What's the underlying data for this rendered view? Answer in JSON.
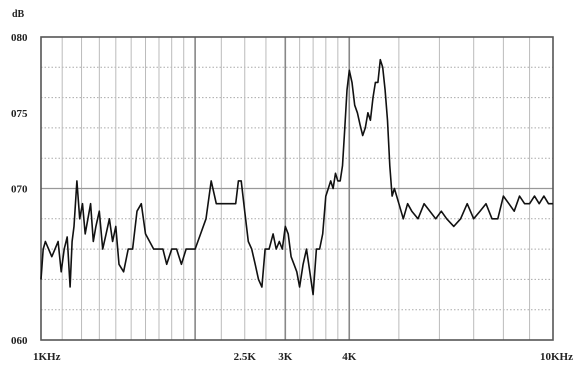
{
  "chart_data": {
    "type": "line",
    "y_unit": "dB",
    "ylim": [
      60,
      80
    ],
    "y_ticks": [
      {
        "value": 80,
        "label": "080"
      },
      {
        "value": 75,
        "label": "075"
      },
      {
        "value": 70,
        "label": "070"
      },
      {
        "value": 60,
        "label": "060"
      }
    ],
    "xlim": [
      1000,
      10000
    ],
    "x_scale": "log",
    "x_ticks": [
      {
        "value": 1000,
        "label": "1KHz"
      },
      {
        "value": 2500,
        "label": "2.5K"
      },
      {
        "value": 3000,
        "label": "3K"
      },
      {
        "value": 4000,
        "label": "4K"
      },
      {
        "value": 10000,
        "label": "10KHz"
      }
    ],
    "grid": true,
    "series": [
      {
        "color": "#111111",
        "x": [
          1000,
          1010,
          1020,
          1035,
          1050,
          1065,
          1080,
          1095,
          1110,
          1125,
          1140,
          1150,
          1160,
          1175,
          1190,
          1205,
          1220,
          1235,
          1250,
          1265,
          1280,
          1300,
          1320,
          1340,
          1360,
          1380,
          1400,
          1420,
          1450,
          1480,
          1510,
          1540,
          1570,
          1600,
          1630,
          1660,
          1700,
          1730,
          1760,
          1800,
          1840,
          1880,
          1920,
          1960,
          2000,
          2050,
          2100,
          2150,
          2200,
          2240,
          2280,
          2320,
          2360,
          2400,
          2430,
          2460,
          2500,
          2540,
          2580,
          2620,
          2660,
          2700,
          2740,
          2790,
          2840,
          2880,
          2920,
          2960,
          3000,
          3040,
          3080,
          3120,
          3160,
          3200,
          3250,
          3300,
          3350,
          3400,
          3450,
          3500,
          3550,
          3600,
          3640,
          3680,
          3720,
          3760,
          3800,
          3840,
          3880,
          3920,
          3960,
          4000,
          4050,
          4100,
          4150,
          4200,
          4250,
          4300,
          4350,
          4400,
          4450,
          4500,
          4550,
          4600,
          4650,
          4700,
          4750,
          4800,
          4850,
          4900,
          5000,
          5100,
          5200,
          5300,
          5450,
          5600,
          5750,
          5900,
          6050,
          6200,
          6400,
          6600,
          6800,
          7000,
          7200,
          7400,
          7600,
          7800,
          8000,
          8200,
          8400,
          8600,
          8800,
          9000,
          9200,
          9400,
          9600,
          9800,
          10000
        ],
        "y": [
          64.0,
          66.0,
          66.5,
          66.0,
          65.5,
          66.0,
          66.5,
          64.5,
          66.0,
          66.8,
          63.5,
          66.5,
          67.5,
          70.5,
          68.0,
          69.0,
          67.0,
          68.0,
          69.0,
          66.5,
          67.5,
          68.5,
          66.0,
          67.0,
          68.0,
          66.5,
          67.5,
          65.0,
          64.5,
          66.0,
          66.0,
          68.5,
          69.0,
          67.0,
          66.5,
          66.0,
          66.0,
          66.0,
          65.0,
          66.0,
          66.0,
          65.0,
          66.0,
          66.0,
          66.0,
          67.0,
          68.0,
          70.5,
          69.0,
          69.0,
          69.0,
          69.0,
          69.0,
          69.0,
          70.5,
          70.5,
          68.5,
          66.5,
          66.0,
          65.0,
          64.0,
          63.5,
          66.0,
          66.0,
          67.0,
          66.0,
          66.5,
          66.0,
          67.5,
          67.0,
          65.5,
          65.0,
          64.5,
          63.5,
          65.0,
          66.0,
          64.5,
          63.0,
          66.0,
          66.0,
          67.0,
          69.5,
          70.0,
          70.5,
          70.0,
          71.0,
          70.5,
          70.5,
          71.5,
          74.0,
          76.5,
          77.8,
          77.0,
          75.5,
          75.0,
          74.2,
          73.5,
          74.0,
          75.0,
          74.5,
          76.0,
          77.0,
          77.0,
          78.5,
          78.0,
          76.5,
          74.5,
          71.5,
          69.5,
          70.0,
          69.0,
          68.0,
          69.0,
          68.5,
          68.0,
          69.0,
          68.5,
          68.0,
          68.5,
          68.0,
          67.5,
          68.0,
          69.0,
          68.0,
          68.5,
          69.0,
          68.0,
          68.0,
          69.5,
          69.0,
          68.5,
          69.5,
          69.0,
          69.0,
          69.5,
          69.0,
          69.5,
          69.0,
          69.0
        ]
      }
    ]
  }
}
